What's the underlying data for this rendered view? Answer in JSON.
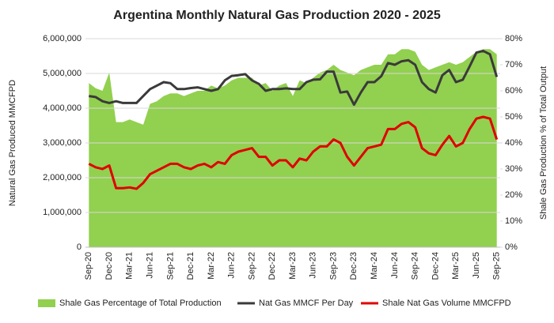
{
  "chart_data": {
    "type": "combo",
    "title": "Argentina Monthly Natural Gas Production 2020 - 2025",
    "ylabel": "Natural Gas Produced MMCFPD",
    "y2label": "Shale Gas Production % of Total Output",
    "categories": [
      "Sep-20",
      null,
      null,
      "Dec-20",
      null,
      null,
      "Mar-21",
      null,
      null,
      "Jun-21",
      null,
      null,
      "Sep-21",
      null,
      null,
      "Dec-21",
      null,
      null,
      "Mar-22",
      null,
      null,
      "Jun-22",
      null,
      null,
      "Sep-22",
      null,
      null,
      "Dec-22",
      null,
      null,
      "Mar-23",
      null,
      null,
      "Jun-23",
      null,
      null,
      "Sep-23",
      null,
      null,
      "Dec-23",
      null,
      null,
      "Mar-24",
      null,
      null,
      "Jun-24",
      null,
      null,
      "Sep-24",
      null,
      null,
      "Dec-24",
      null,
      null,
      "Mar-25",
      null,
      null,
      "Jun-25",
      null,
      null,
      "Sep-25"
    ],
    "ylim": [
      0,
      6000000
    ],
    "yticks": [
      0,
      {
        "value": 1000000,
        "label": "1,000,000"
      },
      {
        "value": 2000000,
        "label": "2,000,000"
      },
      {
        "value": 3000000,
        "label": "3,000,000"
      },
      {
        "value": 4000000,
        "label": "4,000,000"
      },
      {
        "value": 5000000,
        "label": "5,000,000"
      },
      {
        "value": 6000000,
        "label": "6,000,000"
      }
    ],
    "y2lim": [
      0,
      80
    ],
    "y2ticks": [
      {
        "value": 0,
        "label": "0%"
      },
      {
        "value": 10,
        "label": "10%"
      },
      {
        "value": 20,
        "label": "20%"
      },
      {
        "value": 30,
        "label": "30%"
      },
      {
        "value": 40,
        "label": "40%"
      },
      {
        "value": 50,
        "label": "50%"
      },
      {
        "value": 60,
        "label": "60%"
      },
      {
        "value": 70,
        "label": "70%"
      },
      {
        "value": 80,
        "label": "80%"
      }
    ],
    "series": [
      {
        "name": "Shale Gas Percentage of Total Production",
        "type": "area",
        "axis": "y2",
        "color": "#92d050",
        "values": [
          63,
          61,
          60,
          67,
          48,
          48,
          49,
          48,
          47,
          55,
          56,
          58,
          59,
          59,
          58,
          59,
          60,
          60,
          62,
          61,
          62,
          64,
          65,
          65,
          65,
          62,
          63,
          60,
          62,
          63,
          58,
          64,
          63,
          65,
          67,
          68,
          70,
          68,
          67,
          66,
          68,
          69,
          70,
          70,
          74,
          74,
          76,
          76,
          75,
          70,
          68,
          69,
          70,
          71,
          70,
          71,
          73,
          75,
          76,
          76,
          74
        ]
      },
      {
        "name": "Nat Gas MMCF Per Day",
        "type": "line",
        "color": "#3a3a3a",
        "values": [
          4350000,
          4320000,
          4200000,
          4150000,
          4200000,
          4150000,
          4150000,
          4150000,
          4350000,
          4550000,
          4650000,
          4750000,
          4720000,
          4550000,
          4550000,
          4580000,
          4600000,
          4550000,
          4500000,
          4550000,
          4800000,
          4930000,
          4950000,
          4980000,
          4800000,
          4700000,
          4500000,
          4550000,
          4550000,
          4570000,
          4550000,
          4550000,
          4750000,
          4820000,
          4830000,
          5050000,
          5050000,
          4450000,
          4480000,
          4100000,
          4450000,
          4750000,
          4750000,
          4920000,
          5300000,
          5250000,
          5350000,
          5380000,
          5250000,
          4750000,
          4550000,
          4450000,
          4950000,
          5100000,
          4750000,
          4820000,
          5200000,
          5600000,
          5650000,
          5550000,
          4900000
        ]
      },
      {
        "name": "Shale Nat Gas Volume MMCFPD",
        "type": "line",
        "color": "#e00000",
        "values": [
          2400000,
          2300000,
          2250000,
          2350000,
          1700000,
          1700000,
          1720000,
          1680000,
          1850000,
          2100000,
          2200000,
          2300000,
          2400000,
          2400000,
          2300000,
          2250000,
          2350000,
          2400000,
          2300000,
          2450000,
          2400000,
          2650000,
          2750000,
          2800000,
          2850000,
          2600000,
          2600000,
          2350000,
          2500000,
          2500000,
          2300000,
          2550000,
          2500000,
          2750000,
          2900000,
          2900000,
          3100000,
          3000000,
          2600000,
          2350000,
          2600000,
          2850000,
          2900000,
          2950000,
          3400000,
          3400000,
          3550000,
          3600000,
          3450000,
          2850000,
          2700000,
          2650000,
          2950000,
          3200000,
          2900000,
          3000000,
          3400000,
          3700000,
          3750000,
          3700000,
          3100000
        ]
      }
    ],
    "grid": true,
    "legend": "bottom"
  }
}
